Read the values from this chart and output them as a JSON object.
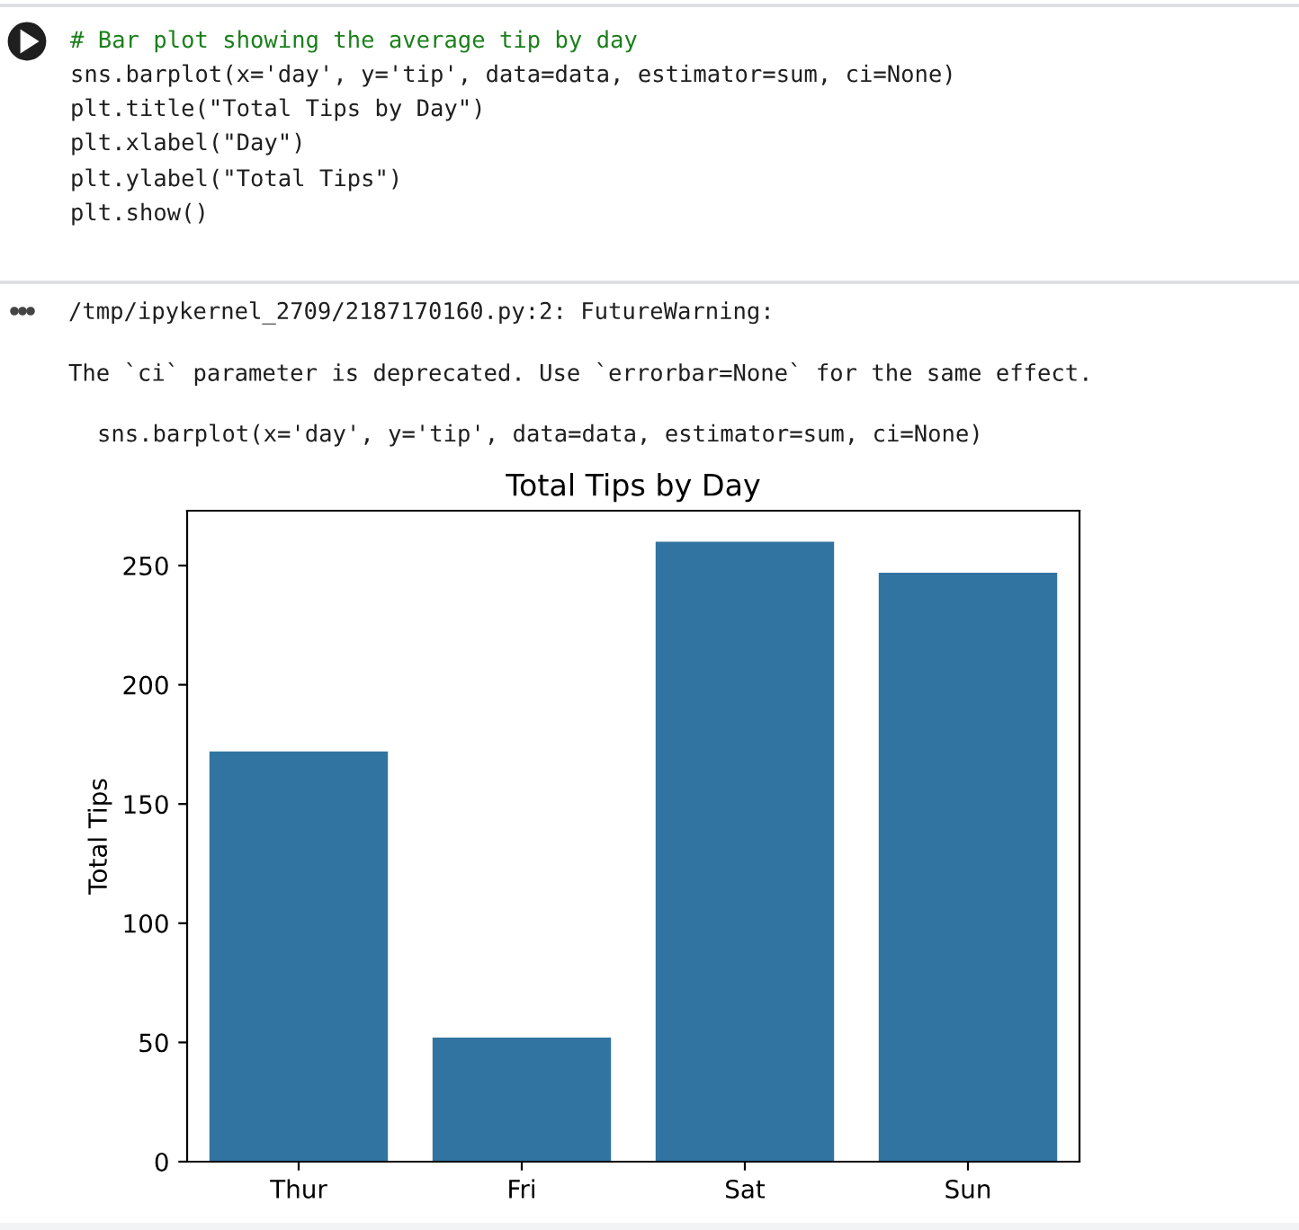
{
  "chart_data": {
    "type": "bar",
    "title": "Total Tips by Day",
    "ylabel": "Total Tips",
    "categories": [
      "Thur",
      "Fri",
      "Sat",
      "Sun"
    ],
    "values": [
      172,
      52,
      260,
      247
    ],
    "color": "#3274a1",
    "ylim": [
      0,
      273
    ],
    "yticks": [
      0,
      50,
      100,
      150,
      200,
      250
    ],
    "annotations": [
      "# Bar plot showing the average tip by day",
      "sns.barplot(x='day', y='tip', data=data, estimator=sum, ci=None)",
      "plt.title(\"Total Tips by Day\")",
      "plt.xlabel(\"Day\")",
      "plt.ylabel(\"Total Tips\")",
      "plt.show()",
      "/tmp/ipykernel_2709/2187170160.py:2: FutureWarning:",
      "The `ci` parameter is deprecated. Use `errorbar=None` for the same effect.",
      "sns.barplot(x='day', y='tip', data=data, estimator=sum, ci=None)"
    ]
  }
}
